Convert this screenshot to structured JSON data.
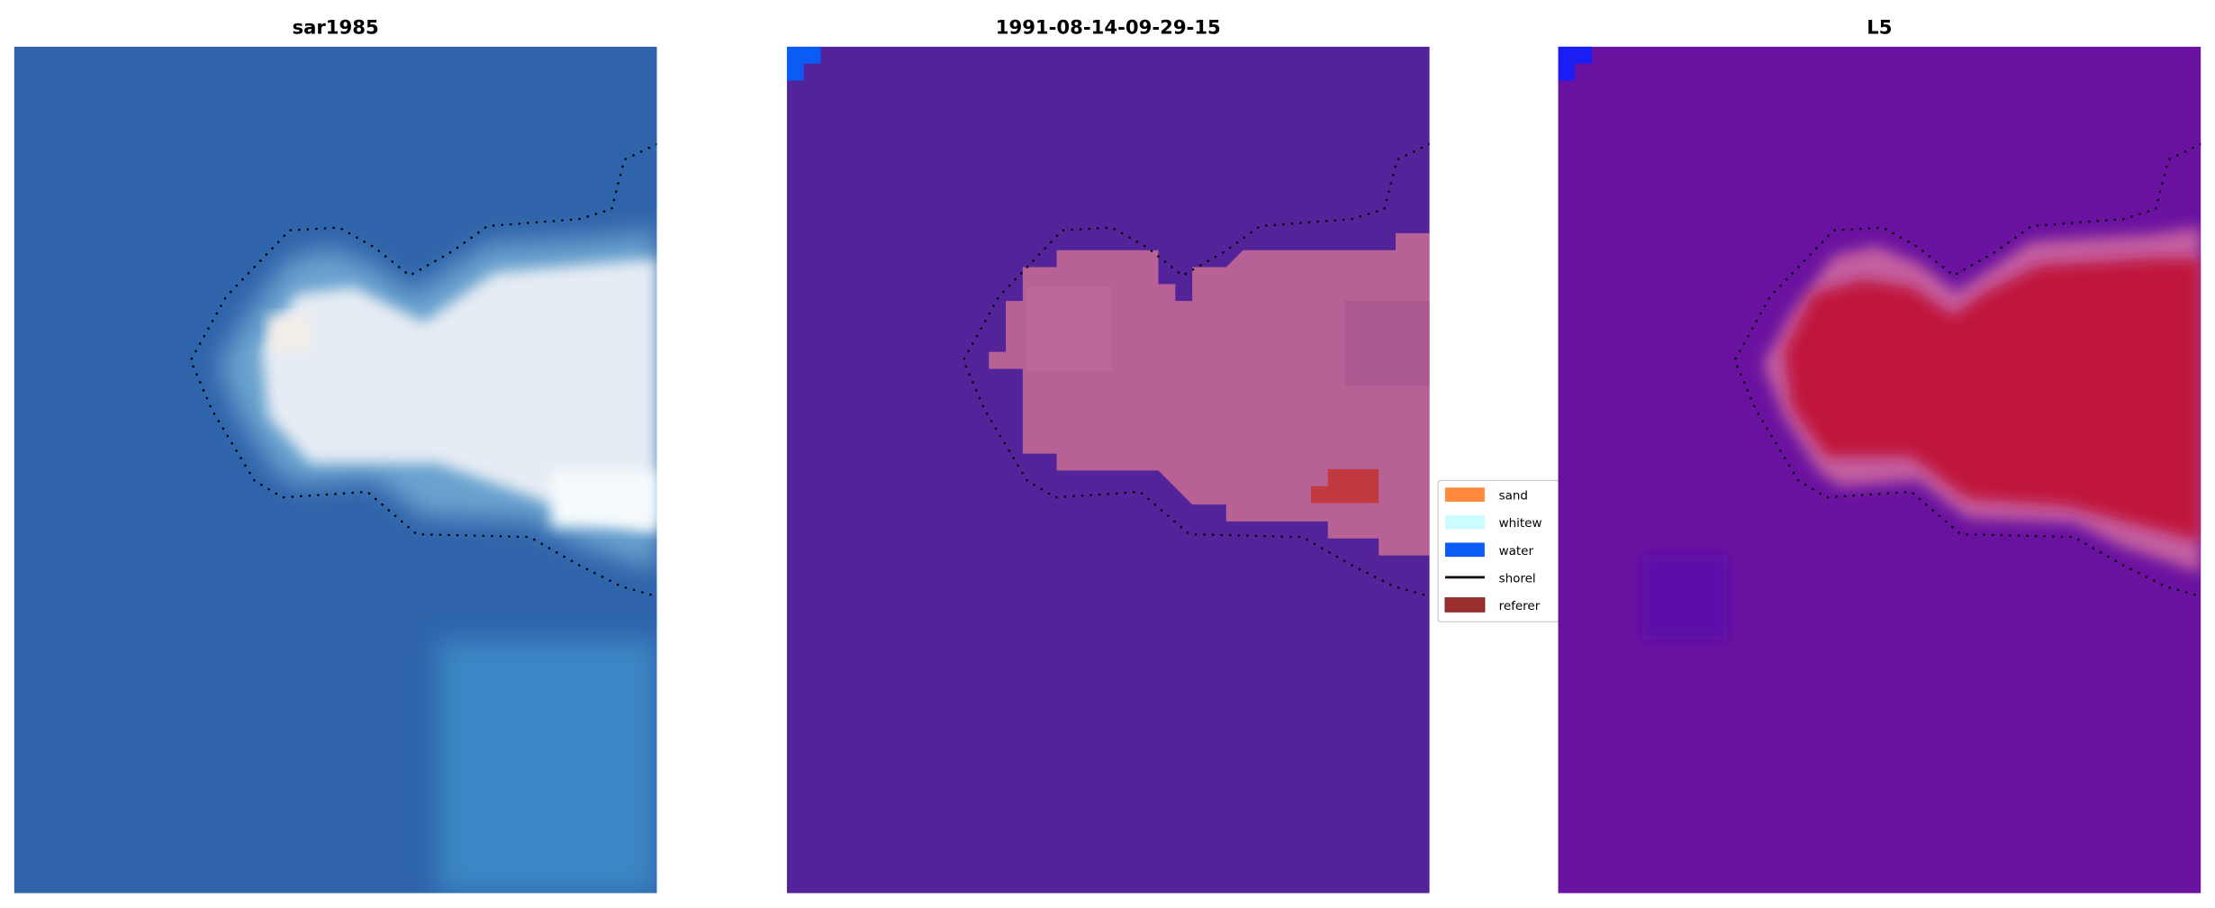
{
  "chart_data": [
    {
      "type": "heatmap",
      "title": "sar1985",
      "description_colors": {
        "background": "#2f64aa",
        "blob": "#e8eef5"
      }
    },
    {
      "type": "heatmap",
      "title": "1991-08-14-09-29-15",
      "description_colors": {
        "background": "#53239a",
        "blob": "#b86196",
        "corner": "#0b5cf5",
        "reference": "#c0393f"
      }
    },
    {
      "type": "heatmap",
      "title": "L5",
      "description_colors": {
        "background": "#6a12a0",
        "blob_edge": "#c45fa0",
        "blob_core": "#c0143c",
        "corner": "#1a1ef5"
      }
    }
  ],
  "legend": {
    "placement": "between middle and right panel",
    "items": [
      {
        "label": "sand",
        "color": "#ff8a3d",
        "kind": "patch"
      },
      {
        "label": "whitew",
        "color": "#ccfcff",
        "kind": "patch"
      },
      {
        "label": "water",
        "color": "#0b5cf5",
        "kind": "patch"
      },
      {
        "label": "shorel",
        "color": "#000000",
        "kind": "line"
      },
      {
        "label": "referer",
        "color": "#9b2f30",
        "kind": "patch"
      }
    ]
  }
}
